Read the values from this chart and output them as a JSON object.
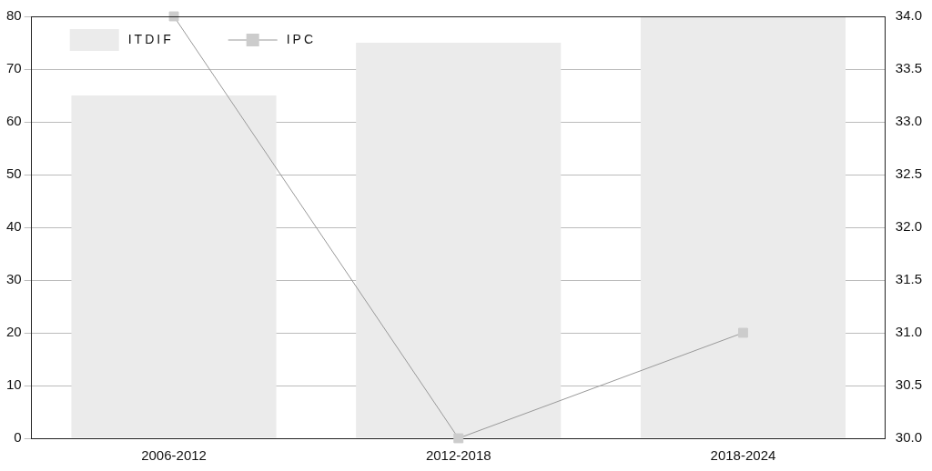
{
  "chart_data": {
    "type": "bar",
    "categories": [
      "2006-2012",
      "2012-2018",
      "2018-2024"
    ],
    "series": [
      {
        "name": "ITDIF",
        "color": "#ebebeb",
        "values": [
          65,
          75,
          80
        ]
      },
      {
        "name": "IPC",
        "type": "line",
        "axis": "y2",
        "color": "#999999",
        "values": [
          34,
          30,
          31
        ]
      }
    ],
    "ylim": [
      0,
      80
    ],
    "yticks": [
      0,
      10,
      20,
      30,
      40,
      50,
      60,
      70,
      80
    ],
    "y2lim": [
      30,
      34
    ],
    "y2ticks": [
      {
        "value": 30,
        "label": "30.0"
      },
      {
        "value": 30.5,
        "label": "30.5"
      },
      {
        "value": 31,
        "label": "31.0"
      },
      {
        "value": 31.5,
        "label": "31.5"
      },
      {
        "value": 32,
        "label": "32.0"
      },
      {
        "value": 32.5,
        "label": "32.5"
      },
      {
        "value": 33,
        "label": "33.0"
      },
      {
        "value": 33.5,
        "label": "33.5"
      },
      {
        "value": 34,
        "label": "34.0"
      }
    ],
    "grid": "y",
    "legend": "top left",
    "marker": "square",
    "line_style": "solid"
  }
}
